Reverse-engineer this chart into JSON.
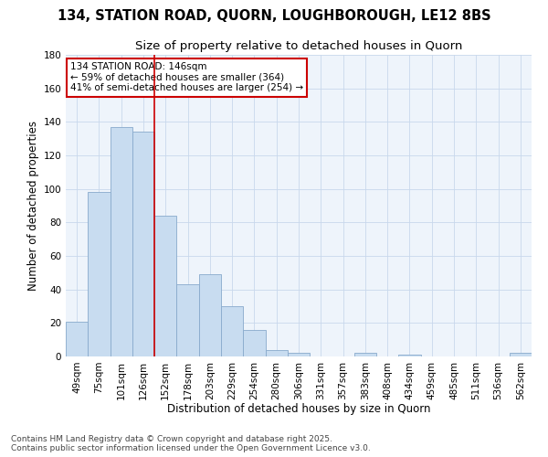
{
  "title_line1": "134, STATION ROAD, QUORN, LOUGHBOROUGH, LE12 8BS",
  "title_line2": "Size of property relative to detached houses in Quorn",
  "xlabel": "Distribution of detached houses by size in Quorn",
  "ylabel": "Number of detached properties",
  "categories": [
    "49sqm",
    "75sqm",
    "101sqm",
    "126sqm",
    "152sqm",
    "178sqm",
    "203sqm",
    "229sqm",
    "254sqm",
    "280sqm",
    "306sqm",
    "331sqm",
    "357sqm",
    "383sqm",
    "408sqm",
    "434sqm",
    "459sqm",
    "485sqm",
    "511sqm",
    "536sqm",
    "562sqm"
  ],
  "values": [
    21,
    98,
    137,
    134,
    84,
    43,
    49,
    30,
    16,
    4,
    2,
    0,
    0,
    2,
    0,
    1,
    0,
    0,
    0,
    0,
    2
  ],
  "bar_color": "#c8dcf0",
  "bar_edge_color": "#88aacc",
  "grid_color": "#c8d8ec",
  "bg_color": "#ffffff",
  "plot_bg_color": "#eef4fb",
  "vline_x": 4,
  "vline_color": "#cc0000",
  "annotation_text": "134 STATION ROAD: 146sqm\n← 59% of detached houses are smaller (364)\n41% of semi-detached houses are larger (254) →",
  "annotation_box_color": "#cc0000",
  "ylim": [
    0,
    180
  ],
  "yticks": [
    0,
    20,
    40,
    60,
    80,
    100,
    120,
    140,
    160,
    180
  ],
  "footer_line1": "Contains HM Land Registry data © Crown copyright and database right 2025.",
  "footer_line2": "Contains public sector information licensed under the Open Government Licence v3.0.",
  "title_fontsize": 10.5,
  "subtitle_fontsize": 9.5,
  "axis_label_fontsize": 8.5,
  "tick_fontsize": 7.5,
  "annotation_fontsize": 7.5,
  "footer_fontsize": 6.5
}
